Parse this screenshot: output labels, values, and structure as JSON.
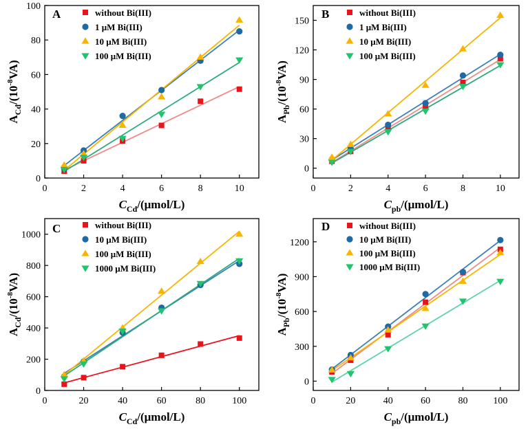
{
  "chart_data": [
    {
      "type": "scatter",
      "panel_label": "A",
      "x": [
        1,
        2,
        4,
        6,
        8,
        10
      ],
      "xlim": [
        0,
        11
      ],
      "ylim": [
        0,
        100
      ],
      "xticks": [
        0,
        2,
        4,
        6,
        8,
        10
      ],
      "yticks": [
        0,
        20,
        40,
        60,
        80,
        100
      ],
      "xlabel": {
        "pre": "C",
        "sub": "Cd",
        "post": "/(μmol/L)"
      },
      "ylabel": {
        "pre": "A",
        "sub": "Cd",
        "mid": "/(10",
        "sup": "-8",
        "post": "VA)"
      },
      "legend_position": "top-right",
      "series": [
        {
          "name": "without Bi(III)",
          "marker": "square",
          "color": "#e8141b",
          "line_color": "#f08a86",
          "values": [
            4,
            10,
            21.5,
            30.5,
            44.5,
            51.5
          ]
        },
        {
          "name": "1 μM Bi(III)",
          "marker": "circle",
          "color": "#1f6aa5",
          "line_color": "#3d7fb8",
          "values": [
            5.5,
            16,
            36,
            51,
            68,
            85
          ]
        },
        {
          "name": "10 μM Bi(III)",
          "marker": "triangle-up",
          "color": "#f7b500",
          "line_color": "#f7b500",
          "values": [
            7.5,
            14,
            30.5,
            47,
            70,
            91.5
          ]
        },
        {
          "name": "100 μM Bi(III)",
          "marker": "triangle-down",
          "color": "#21c46d",
          "line_color": "#2aaa7a",
          "values": [
            5,
            12,
            23,
            37,
            53,
            68.5
          ]
        }
      ]
    },
    {
      "type": "scatter",
      "panel_label": "B",
      "x": [
        1,
        2,
        4,
        6,
        8,
        10
      ],
      "xlim": [
        0,
        11
      ],
      "ylim": [
        -10,
        165
      ],
      "xticks": [
        0,
        2,
        4,
        6,
        8,
        10
      ],
      "yticks": [
        0,
        30,
        60,
        90,
        120,
        150
      ],
      "xlabel": {
        "pre": "C",
        "sub": "pb",
        "post": "/(μmol/L)"
      },
      "ylabel": {
        "pre": "A",
        "sub": "Pb",
        "mid": "/(10",
        "sup": "-8",
        "post": "VA)"
      },
      "legend_position": "top-right",
      "series": [
        {
          "name": "without Bi(III)",
          "marker": "square",
          "color": "#e8141b",
          "line_color": "#f08a86",
          "values": [
            7,
            17,
            40,
            63,
            87,
            111
          ]
        },
        {
          "name": "1 μM Bi(III)",
          "marker": "circle",
          "color": "#1f6aa5",
          "line_color": "#3d7fb8",
          "values": [
            9,
            20,
            44,
            66,
            94,
            115
          ]
        },
        {
          "name": "10 μM Bi(III)",
          "marker": "triangle-up",
          "color": "#f7b500",
          "line_color": "#f7b500",
          "values": [
            11,
            24,
            55,
            84,
            121,
            155
          ]
        },
        {
          "name": "100 μM Bi(III)",
          "marker": "triangle-down",
          "color": "#21c46d",
          "line_color": "#2aaa7a",
          "values": [
            6,
            17,
            37,
            58,
            83,
            105
          ]
        }
      ]
    },
    {
      "type": "scatter",
      "panel_label": "C",
      "x": [
        10,
        20,
        40,
        60,
        80,
        100
      ],
      "xlim": [
        0,
        110
      ],
      "ylim": [
        0,
        1100
      ],
      "xticks": [
        0,
        20,
        40,
        60,
        80,
        100
      ],
      "yticks": [
        0,
        200,
        400,
        600,
        800,
        1000
      ],
      "xlabel": {
        "pre": "C",
        "sub": "Cd",
        "post": "/(μmol/L)"
      },
      "ylabel": {
        "pre": "A",
        "sub": "Cd",
        "mid": "/(10",
        "sup": "-8",
        "post": "VA)"
      },
      "legend_position": "top-center",
      "series": [
        {
          "name": "without Bi(III)",
          "marker": "square",
          "color": "#e8141b",
          "line_color": "#e8141b",
          "values": [
            40,
            82,
            152,
            225,
            297,
            335
          ]
        },
        {
          "name": "10 μM Bi(III)",
          "marker": "circle",
          "color": "#1f6aa5",
          "line_color": "#3d7fb8",
          "values": [
            90,
            185,
            370,
            530,
            675,
            810
          ]
        },
        {
          "name": "100 μM Bi(III)",
          "marker": "triangle-up",
          "color": "#f7b500",
          "line_color": "#f7b500",
          "values": [
            100,
            190,
            400,
            635,
            825,
            1000
          ]
        },
        {
          "name": "1000 μM Bi(III)",
          "marker": "triangle-down",
          "color": "#21c46d",
          "line_color": "#2aaa7a",
          "values": [
            75,
            170,
            380,
            510,
            685,
            830
          ]
        }
      ]
    },
    {
      "type": "scatter",
      "panel_label": "D",
      "x": [
        10,
        20,
        40,
        60,
        80,
        100
      ],
      "xlim": [
        0,
        110
      ],
      "ylim": [
        -80,
        1400
      ],
      "xticks": [
        0,
        20,
        40,
        60,
        80,
        100
      ],
      "yticks": [
        0,
        300,
        600,
        900,
        1200
      ],
      "xlabel": {
        "pre": "C",
        "sub": "pb",
        "post": "/(μmol/L)"
      },
      "ylabel": {
        "pre": "A",
        "sub": "Pb",
        "mid": "/(10",
        "sup": "-8",
        "post": "VA)"
      },
      "legend_position": "top-left",
      "series": [
        {
          "name": "without Bi(III)",
          "marker": "square",
          "color": "#e8141b",
          "line_color": "#f08a86",
          "values": [
            80,
            180,
            400,
            680,
            935,
            1135
          ]
        },
        {
          "name": "10 μM Bi(III)",
          "marker": "circle",
          "color": "#1f6aa5",
          "line_color": "#3d7fb8",
          "values": [
            100,
            225,
            470,
            750,
            940,
            1215
          ]
        },
        {
          "name": "100 μM Bi(III)",
          "marker": "triangle-up",
          "color": "#f7b500",
          "line_color": "#f7b500",
          "values": [
            95,
            200,
            440,
            625,
            860,
            1105
          ]
        },
        {
          "name": "1000 μM Bi(III)",
          "marker": "triangle-down",
          "color": "#21c46d",
          "line_color": "#5fd3a8",
          "values": [
            15,
            65,
            280,
            475,
            690,
            860
          ]
        }
      ]
    }
  ]
}
